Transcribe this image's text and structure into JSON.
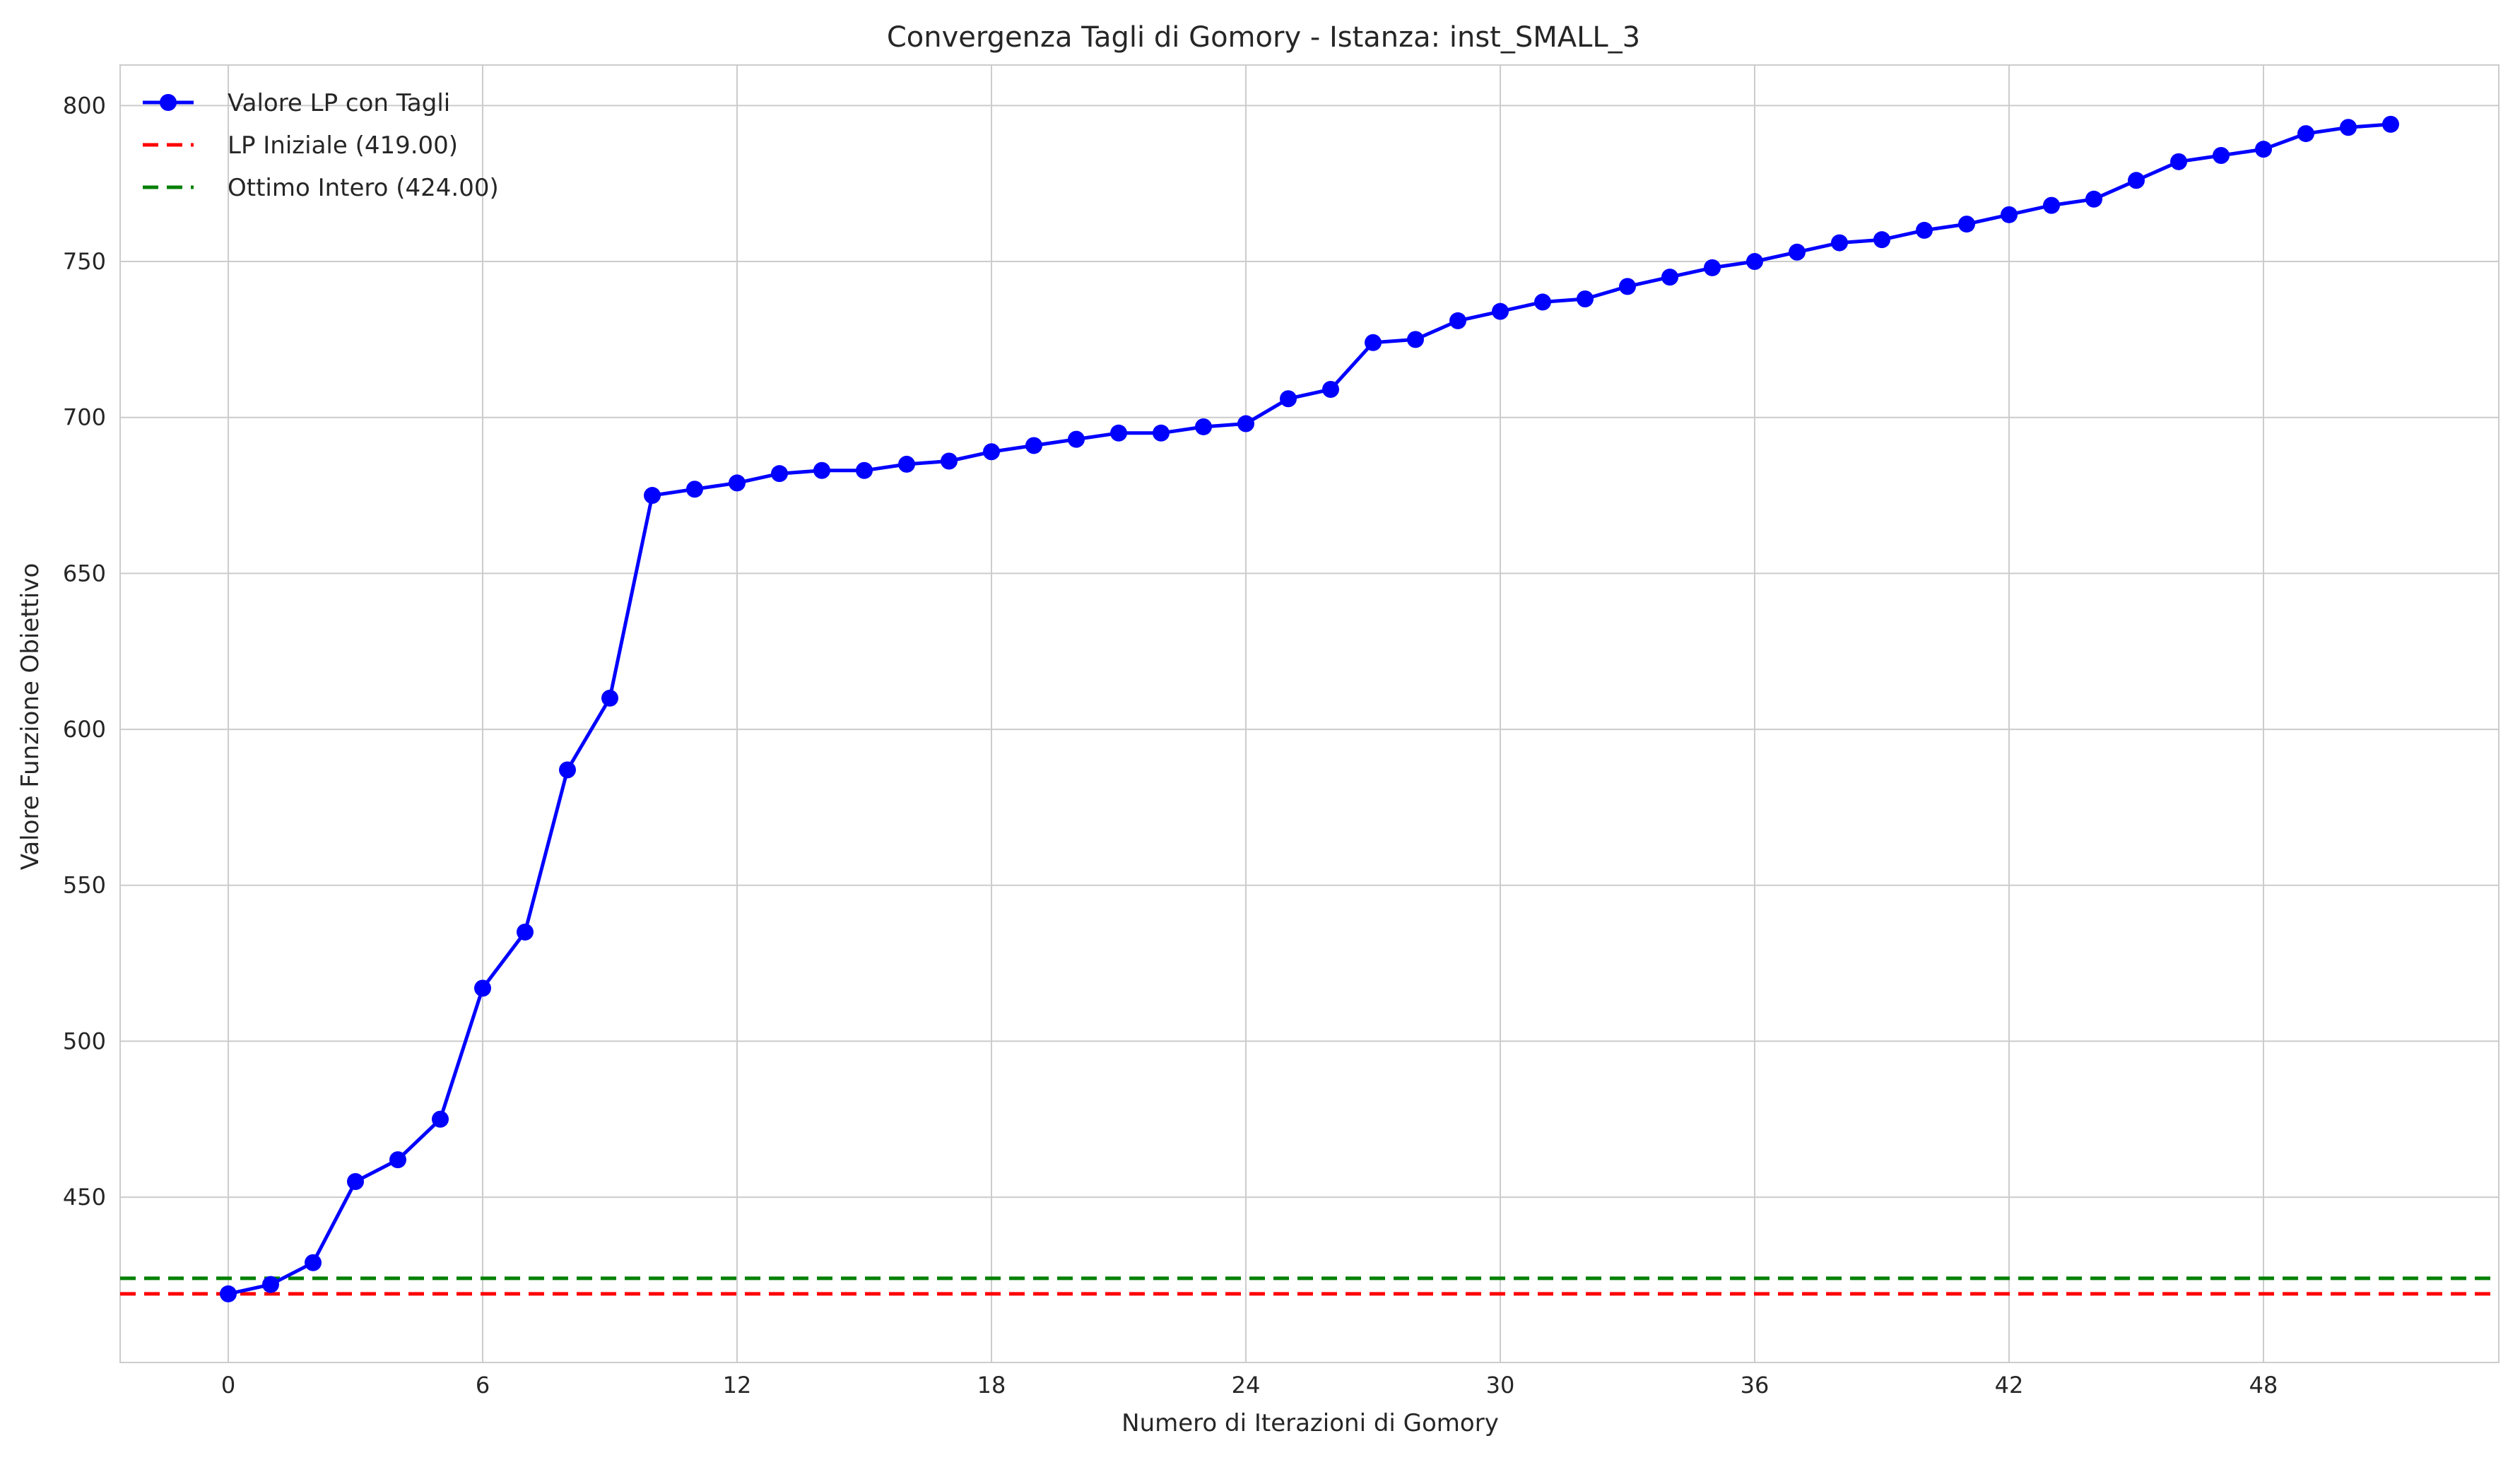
{
  "chart_data": {
    "type": "line",
    "title": "Convergenza Tagli di Gomory - Istanza: inst_SMALL_3",
    "xlabel": "Numero di Iterazioni di Gomory",
    "ylabel": "Valore Funzione Obiettivo",
    "xlim": [
      -2.55,
      53.55
    ],
    "ylim": [
      397,
      813
    ],
    "xticks": [
      0,
      6,
      12,
      18,
      24,
      30,
      36,
      42,
      48
    ],
    "yticks": [
      450,
      500,
      550,
      600,
      650,
      700,
      750,
      800
    ],
    "grid": true,
    "legend_position": "top-left",
    "series": [
      {
        "name": "Valore LP con Tagli",
        "color": "#0000ff",
        "style": "solid-with-markers",
        "x": [
          0,
          1,
          2,
          3,
          4,
          5,
          6,
          7,
          8,
          9,
          10,
          11,
          12,
          13,
          14,
          15,
          16,
          17,
          18,
          19,
          20,
          21,
          22,
          23,
          24,
          25,
          26,
          27,
          28,
          29,
          30,
          31,
          32,
          33,
          34,
          35,
          36,
          37,
          38,
          39,
          40,
          41,
          42,
          43,
          44,
          45,
          46,
          47,
          48,
          49,
          50,
          51
        ],
        "values": [
          419,
          422,
          429,
          455,
          462,
          475,
          517,
          535,
          587,
          610,
          675,
          677,
          679,
          682,
          683,
          683,
          685,
          686,
          689,
          691,
          693,
          695,
          695,
          697,
          698,
          706,
          709,
          724,
          725,
          731,
          734,
          737,
          738,
          742,
          745,
          748,
          750,
          753,
          756,
          757,
          760,
          762,
          765,
          768,
          770,
          776,
          782,
          784,
          786,
          791,
          793,
          794
        ]
      },
      {
        "name": "LP Iniziale (419.00)",
        "color": "#ff0000",
        "style": "dashed-horizontal",
        "y": 419
      },
      {
        "name": "Ottimo Intero (424.00)",
        "color": "#008000",
        "style": "dashed-horizontal",
        "y": 424
      }
    ]
  }
}
